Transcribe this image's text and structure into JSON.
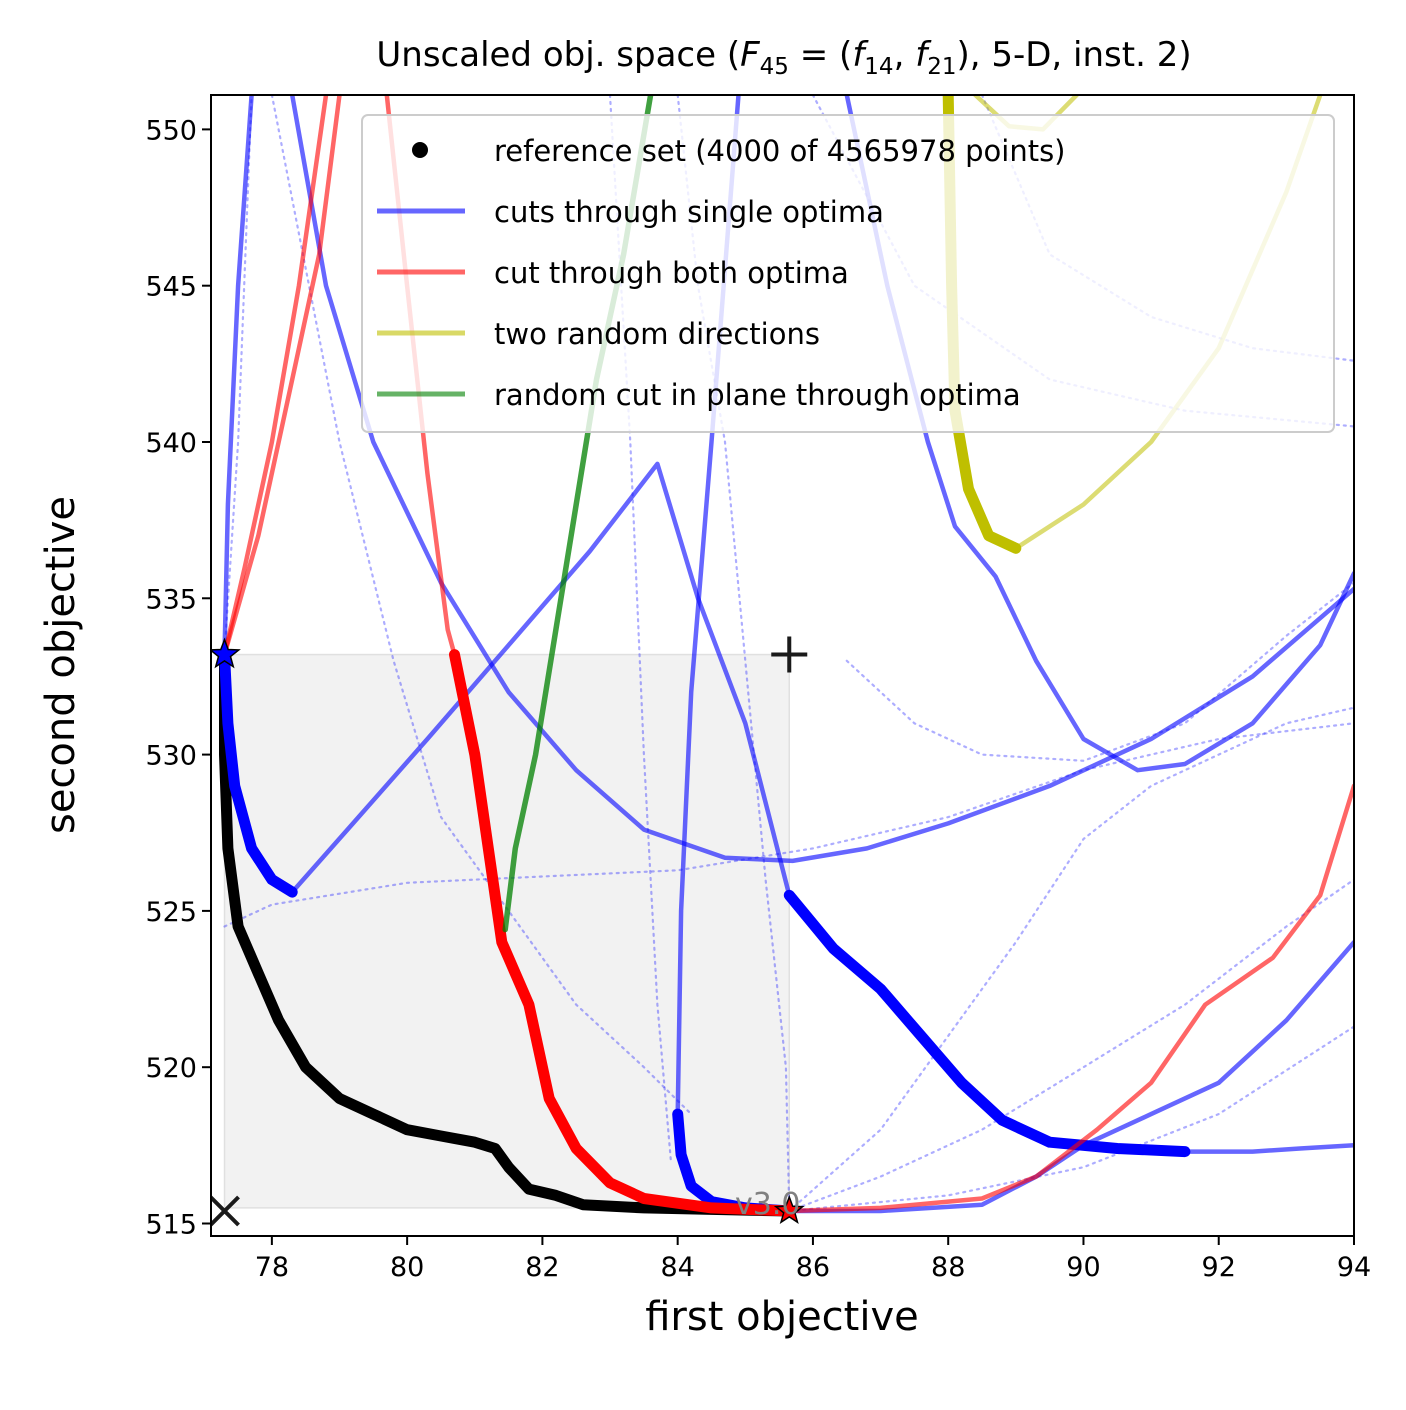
{
  "chart_data": {
    "type": "line",
    "title_parts": [
      "Unscaled obj. space (",
      "F",
      "45",
      " = (",
      "f",
      "14",
      ", ",
      "f",
      "21",
      "), 5-D, inst. 2)"
    ],
    "xlabel": "first objective",
    "ylabel": "second objective",
    "xlim": [
      77.1,
      94.0
    ],
    "ylim": [
      514.6,
      551.1
    ],
    "xticks": [
      78,
      80,
      82,
      84,
      86,
      88,
      90,
      92,
      94
    ],
    "xtick_labels": [
      "78",
      "80",
      "82",
      "84",
      "86",
      "88",
      "90",
      "92",
      "94"
    ],
    "yticks": [
      515,
      520,
      525,
      530,
      535,
      540,
      545,
      550
    ],
    "ytick_labels": [
      "515",
      "520",
      "525",
      "530",
      "535",
      "540",
      "545",
      "550"
    ],
    "grid": false,
    "legend_position": "top-right",
    "legend": [
      {
        "label": "reference set (4000 of 4565978 points)",
        "marker": "dot",
        "color": "#000000"
      },
      {
        "label": "cuts through single optima",
        "marker": "line",
        "color": "#0000ff"
      },
      {
        "label": "cut through both optima",
        "marker": "line",
        "color": "#ff0000"
      },
      {
        "label": "two random directions",
        "marker": "line",
        "color": "#bfbf00"
      },
      {
        "label": "random cut in plane through optima",
        "marker": "line",
        "color": "#008000"
      }
    ],
    "version_label": "v3.0",
    "shaded_region": {
      "x": [
        77.3,
        85.65
      ],
      "y": [
        515.5,
        533.2
      ]
    },
    "ideal_point_marker": {
      "x": 77.3,
      "y": 515.4
    },
    "nadir_point_marker": {
      "x": 85.65,
      "y": 533.2
    },
    "optima": [
      {
        "name": "optimum of f14",
        "x": 77.3,
        "y": 533.2
      },
      {
        "name": "optimum of f21",
        "x": 85.65,
        "y": 515.4
      }
    ],
    "series": [
      {
        "kind": "reference",
        "color": "#000000",
        "width": 11,
        "opacity": 1,
        "points": [
          [
            77.3,
            533.2
          ],
          [
            77.3,
            530
          ],
          [
            77.35,
            527
          ],
          [
            77.5,
            524.5
          ],
          [
            77.8,
            523
          ],
          [
            78.1,
            521.5
          ],
          [
            78.5,
            520
          ],
          [
            79,
            519
          ],
          [
            79.5,
            518.5
          ],
          [
            80,
            518
          ],
          [
            80.5,
            517.8
          ],
          [
            81,
            517.6
          ],
          [
            81.3,
            517.4
          ],
          [
            81.5,
            516.8
          ],
          [
            81.8,
            516.1
          ],
          [
            82.2,
            515.9
          ],
          [
            82.6,
            515.6
          ],
          [
            83.5,
            515.5
          ],
          [
            84.5,
            515.45
          ],
          [
            85.65,
            515.4
          ]
        ]
      },
      {
        "kind": "single",
        "color": "#0000ff",
        "width": 11,
        "opacity": 1,
        "points": [
          [
            77.3,
            533.2
          ],
          [
            77.35,
            531
          ],
          [
            77.45,
            529
          ],
          [
            77.7,
            527
          ],
          [
            78.0,
            526
          ],
          [
            78.3,
            525.6
          ]
        ]
      },
      {
        "kind": "single",
        "color": "#0000ff",
        "width": 4.5,
        "opacity": 0.6,
        "points": [
          [
            78.3,
            525.6
          ],
          [
            79.2,
            527.8
          ],
          [
            80.3,
            530.5
          ],
          [
            81.5,
            533.5
          ],
          [
            82.7,
            536.5
          ],
          [
            83.7,
            539.3
          ],
          [
            84.3,
            535
          ],
          [
            85.0,
            531
          ],
          [
            85.65,
            525.5
          ]
        ]
      },
      {
        "kind": "single",
        "color": "#0000ff",
        "width": 11,
        "opacity": 1,
        "points": [
          [
            85.65,
            525.5
          ],
          [
            86.3,
            523.8
          ],
          [
            87.0,
            522.5
          ],
          [
            87.6,
            521
          ],
          [
            88.2,
            519.5
          ],
          [
            88.8,
            518.3
          ],
          [
            89.5,
            517.6
          ],
          [
            90.5,
            517.4
          ],
          [
            91.5,
            517.3
          ]
        ]
      },
      {
        "kind": "single",
        "color": "#0000ff",
        "width": 4.5,
        "opacity": 0.6,
        "points": [
          [
            91.5,
            517.3
          ],
          [
            92.5,
            517.3
          ],
          [
            93.2,
            517.4
          ],
          [
            94.0,
            517.5
          ]
        ]
      },
      {
        "kind": "single",
        "color": "#0000ff",
        "width": 11,
        "opacity": 1,
        "points": [
          [
            84.0,
            518.5
          ],
          [
            84.05,
            517.2
          ],
          [
            84.2,
            516.2
          ],
          [
            84.5,
            515.7
          ],
          [
            85.0,
            515.5
          ],
          [
            85.65,
            515.4
          ]
        ]
      },
      {
        "kind": "single",
        "color": "#0000ff",
        "width": 4.5,
        "opacity": 0.6,
        "points": [
          [
            84.0,
            518.5
          ],
          [
            84.05,
            525
          ],
          [
            84.2,
            532
          ],
          [
            84.5,
            540
          ],
          [
            84.9,
            551.1
          ]
        ]
      },
      {
        "kind": "single",
        "color": "#0000ff",
        "width": 4.5,
        "opacity": 0.6,
        "points": [
          [
            77.7,
            551.1
          ],
          [
            77.5,
            545
          ],
          [
            77.35,
            538
          ],
          [
            77.3,
            533.2
          ]
        ]
      },
      {
        "kind": "single",
        "color": "#0000ff",
        "width": 4.5,
        "opacity": 0.6,
        "points": [
          [
            78.3,
            551.1
          ],
          [
            78.8,
            545
          ],
          [
            79.5,
            540
          ],
          [
            80.5,
            535.5
          ],
          [
            81.5,
            532
          ],
          [
            82.5,
            529.5
          ],
          [
            83.5,
            527.6
          ],
          [
            84.7,
            526.7
          ],
          [
            85.7,
            526.6
          ],
          [
            86.8,
            527
          ],
          [
            88,
            527.8
          ],
          [
            89.5,
            529
          ],
          [
            91,
            530.5
          ],
          [
            92.5,
            532.5
          ],
          [
            94.0,
            535.3
          ]
        ]
      },
      {
        "kind": "single",
        "color": "#0000ff",
        "width": 4.5,
        "opacity": 0.6,
        "points": [
          [
            86.5,
            551.1
          ],
          [
            87.1,
            545
          ],
          [
            87.7,
            540
          ],
          [
            88.1,
            537.3
          ],
          [
            88.7,
            535.7
          ],
          [
            89.3,
            533
          ],
          [
            90.0,
            530.5
          ],
          [
            90.8,
            529.5
          ],
          [
            91.5,
            529.7
          ],
          [
            92.5,
            531
          ],
          [
            93.5,
            533.5
          ],
          [
            94.0,
            535.8
          ]
        ]
      },
      {
        "kind": "single",
        "color": "#0000ff",
        "width": 4.5,
        "opacity": 0.6,
        "points": [
          [
            85.65,
            515.4
          ],
          [
            87,
            515.4
          ],
          [
            88.5,
            515.6
          ],
          [
            89.3,
            516.5
          ],
          [
            90.0,
            517.5
          ],
          [
            91,
            518.5
          ],
          [
            92,
            519.5
          ],
          [
            93,
            521.5
          ],
          [
            94.0,
            524
          ]
        ]
      },
      {
        "kind": "both",
        "color": "#ff0000",
        "width": 4.5,
        "opacity": 0.6,
        "points": [
          [
            77.3,
            533.2
          ],
          [
            77.8,
            537
          ],
          [
            78.3,
            542
          ],
          [
            78.7,
            546
          ],
          [
            79.0,
            551.1
          ]
        ]
      },
      {
        "kind": "both",
        "color": "#ff0000",
        "width": 4.5,
        "opacity": 0.6,
        "points": [
          [
            77.3,
            533.2
          ],
          [
            77.6,
            536
          ],
          [
            78.0,
            540
          ],
          [
            78.4,
            545
          ],
          [
            78.8,
            551.1
          ]
        ]
      },
      {
        "kind": "both",
        "color": "#ff0000",
        "width": 4.5,
        "opacity": 0.6,
        "points": [
          [
            79.7,
            551.1
          ],
          [
            80.0,
            545
          ],
          [
            80.3,
            539
          ],
          [
            80.6,
            534
          ],
          [
            80.7,
            533.2
          ]
        ]
      },
      {
        "kind": "both",
        "color": "#ff0000",
        "width": 11,
        "opacity": 1,
        "points": [
          [
            80.7,
            533.2
          ],
          [
            81.0,
            530
          ],
          [
            81.2,
            527
          ],
          [
            81.4,
            524
          ],
          [
            81.8,
            522
          ],
          [
            82.1,
            519
          ],
          [
            82.5,
            517.4
          ],
          [
            83.0,
            516.3
          ],
          [
            83.5,
            515.8
          ],
          [
            84.5,
            515.5
          ],
          [
            85.65,
            515.4
          ]
        ]
      },
      {
        "kind": "both",
        "color": "#ff0000",
        "width": 4.5,
        "opacity": 0.6,
        "points": [
          [
            85.65,
            515.4
          ],
          [
            87,
            515.5
          ],
          [
            88.5,
            515.8
          ],
          [
            89.3,
            516.5
          ],
          [
            90.2,
            518
          ],
          [
            91,
            519.5
          ],
          [
            91.8,
            522
          ],
          [
            92.8,
            523.5
          ],
          [
            93.5,
            525.5
          ],
          [
            94.0,
            529
          ]
        ]
      },
      {
        "kind": "random",
        "color": "#bfbf00",
        "width": 4.5,
        "opacity": 0.55,
        "points": [
          [
            89.0,
            536.6
          ],
          [
            90.0,
            538
          ],
          [
            91.0,
            540
          ],
          [
            92.0,
            543
          ],
          [
            93.0,
            548
          ],
          [
            93.5,
            551.1
          ]
        ]
      },
      {
        "kind": "random",
        "color": "#bfbf00",
        "width": 11,
        "opacity": 1,
        "points": [
          [
            88.0,
            551.1
          ],
          [
            88.05,
            545
          ],
          [
            88.1,
            541
          ],
          [
            88.3,
            538.5
          ],
          [
            88.6,
            537
          ],
          [
            89.0,
            536.6
          ]
        ]
      },
      {
        "kind": "random",
        "color": "#bfbf00",
        "width": 4.5,
        "opacity": 0.55,
        "points": [
          [
            88.4,
            551.1
          ],
          [
            88.9,
            550.1
          ],
          [
            89.4,
            550
          ],
          [
            89.9,
            551.1
          ]
        ]
      },
      {
        "kind": "plane",
        "color": "#008000",
        "width": 5.5,
        "opacity": 0.75,
        "points": [
          [
            81.45,
            524.4
          ],
          [
            81.6,
            527
          ],
          [
            81.9,
            530
          ],
          [
            82.2,
            534
          ],
          [
            82.5,
            538
          ],
          [
            82.8,
            542
          ],
          [
            83.2,
            546
          ],
          [
            83.6,
            551.1
          ]
        ]
      }
    ],
    "dotted_cuts": [
      {
        "color": "#0000ff",
        "points": [
          [
            77.3,
            524.5
          ],
          [
            78,
            525.2
          ],
          [
            80,
            525.9
          ],
          [
            82,
            526.1
          ],
          [
            84,
            526.3
          ],
          [
            86,
            527
          ],
          [
            88,
            528
          ],
          [
            90,
            529.5
          ],
          [
            92,
            530.5
          ],
          [
            94,
            531
          ]
        ]
      },
      {
        "color": "#0000ff",
        "points": [
          [
            78.0,
            551.1
          ],
          [
            79.0,
            540
          ],
          [
            79.8,
            533
          ],
          [
            80.5,
            528
          ],
          [
            81.5,
            525
          ],
          [
            82.5,
            522
          ],
          [
            83.5,
            520
          ],
          [
            84.2,
            518.5
          ]
        ]
      },
      {
        "color": "#0000ff",
        "points": [
          [
            84.0,
            551.1
          ],
          [
            84.3,
            545
          ],
          [
            84.7,
            540
          ],
          [
            85.0,
            533
          ],
          [
            85.3,
            526
          ],
          [
            85.6,
            520
          ],
          [
            85.65,
            515.4
          ]
        ]
      },
      {
        "color": "#0000ff",
        "points": [
          [
            86.0,
            551.1
          ],
          [
            87.5,
            545
          ],
          [
            89.5,
            542
          ],
          [
            91.5,
            541
          ],
          [
            94,
            540.5
          ]
        ]
      },
      {
        "color": "#0000ff",
        "points": [
          [
            88.5,
            551.1
          ],
          [
            89.5,
            546
          ],
          [
            91,
            544
          ],
          [
            92.5,
            543
          ],
          [
            94,
            542.6
          ]
        ]
      },
      {
        "color": "#0000ff",
        "points": [
          [
            85.65,
            515.4
          ],
          [
            87,
            518
          ],
          [
            88,
            521
          ],
          [
            89,
            524
          ],
          [
            90,
            527.3
          ],
          [
            91,
            529
          ],
          [
            92,
            530
          ],
          [
            93,
            531
          ],
          [
            94,
            531.5
          ]
        ]
      },
      {
        "color": "#0000ff",
        "points": [
          [
            85.65,
            515.4
          ],
          [
            87,
            516.5
          ],
          [
            88.5,
            518
          ],
          [
            90,
            520
          ],
          [
            91.5,
            522
          ],
          [
            93,
            524.5
          ],
          [
            94,
            526
          ]
        ]
      },
      {
        "color": "#0000ff",
        "points": [
          [
            86.5,
            533
          ],
          [
            87.5,
            531
          ],
          [
            88.5,
            530
          ],
          [
            90,
            529.8
          ],
          [
            91.5,
            531
          ],
          [
            93,
            533.8
          ],
          [
            94,
            535.5
          ]
        ]
      },
      {
        "color": "#0000ff",
        "points": [
          [
            77.3,
            533.2
          ],
          [
            77.5,
            540
          ],
          [
            77.7,
            551.1
          ]
        ]
      },
      {
        "color": "#0000ff",
        "points": [
          [
            83.0,
            551.1
          ],
          [
            83.3,
            540
          ],
          [
            83.5,
            530
          ],
          [
            83.7,
            522
          ],
          [
            83.9,
            517
          ]
        ]
      },
      {
        "color": "#0000ff",
        "points": [
          [
            85.65,
            515.4
          ],
          [
            88,
            515.9
          ],
          [
            90,
            516.8
          ],
          [
            92,
            518.5
          ],
          [
            94,
            521.3
          ]
        ]
      }
    ]
  }
}
